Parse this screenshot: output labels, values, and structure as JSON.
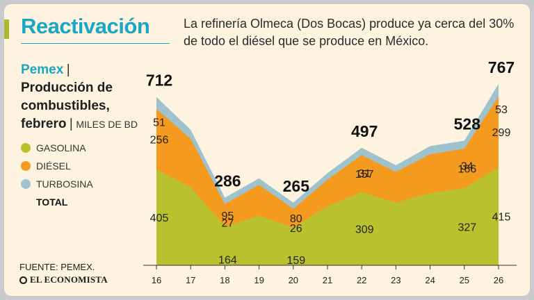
{
  "header": {
    "title": "Reactivación",
    "subtitle": "La refinería Olmeca (Dos Bocas) produce ya cerca del 30% de todo el diésel que se produce en México."
  },
  "legend": {
    "source_name": "Pemex",
    "separator": "|",
    "title": "Producción de combustibles, febrero",
    "units": "MILES DE BD",
    "items": [
      {
        "label": "GASOLINA",
        "color": "#b9c22e"
      },
      {
        "label": "DIÉSEL",
        "color": "#f49a1f"
      },
      {
        "label": "TURBOSINA",
        "color": "#9ec3cf"
      },
      {
        "label": "TOTAL",
        "color": ""
      }
    ]
  },
  "footer": {
    "source": "FUENTE: PEMEX.",
    "brand": "EL ECONOMISTA"
  },
  "chart_data": {
    "type": "area",
    "stacked": true,
    "x": [
      "16",
      "17",
      "18",
      "19",
      "20",
      "21",
      "22",
      "23",
      "24",
      "25",
      "26"
    ],
    "series": [
      {
        "name": "GASOLINA",
        "color": "#b9c22e",
        "values": [
          405,
          330,
          164,
          210,
          159,
          250,
          309,
          265,
          305,
          327,
          415
        ]
      },
      {
        "name": "DIÉSEL",
        "color": "#f49a1f",
        "values": [
          256,
          205,
          95,
          130,
          80,
          112,
          157,
          130,
          165,
          166,
          299
        ]
      },
      {
        "name": "TURBOSINA",
        "color": "#9ec3cf",
        "values": [
          51,
          38,
          27,
          28,
          26,
          28,
          31,
          28,
          34,
          34,
          53
        ]
      }
    ],
    "totals": [
      712,
      null,
      286,
      null,
      265,
      null,
      497,
      null,
      null,
      528,
      767
    ],
    "labels": {
      "GASOLINA": [
        405,
        null,
        164,
        null,
        159,
        null,
        309,
        null,
        null,
        327,
        415
      ],
      "DIÉSEL": [
        256,
        null,
        95,
        null,
        80,
        null,
        157,
        null,
        null,
        166,
        299
      ],
      "TURBOSINA": [
        51,
        null,
        27,
        null,
        26,
        null,
        31,
        null,
        null,
        34,
        53
      ]
    },
    "title": "Producción de combustibles, febrero",
    "ylabel": "MILES DE BD",
    "xlabel": "",
    "ylim": [
      0,
      820
    ]
  }
}
